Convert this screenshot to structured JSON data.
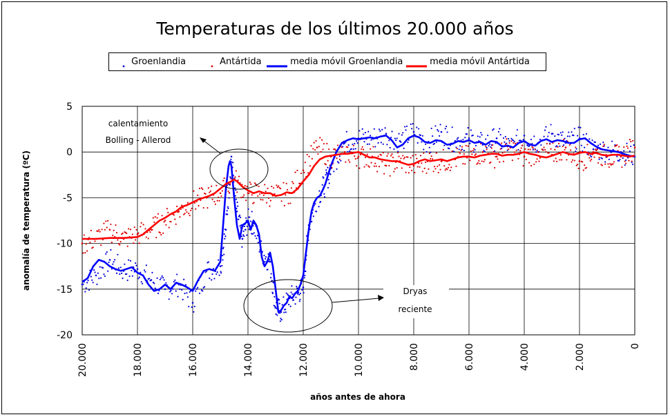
{
  "chart_data": {
    "type": "line",
    "title": "Temperaturas de los últimos 20.000 años",
    "xlabel": "años antes de ahora",
    "ylabel": "anomalía de temperatura (ºC)",
    "xlim": [
      20000,
      0
    ],
    "ylim": [
      -20,
      5
    ],
    "x_ticks": [
      20000,
      18000,
      16000,
      14000,
      12000,
      10000,
      8000,
      6000,
      4000,
      2000,
      0
    ],
    "x_tick_labels": [
      "20.000",
      "18.000",
      "16.000",
      "14.000",
      "12.000",
      "10.000",
      "8.000",
      "6.000",
      "4.000",
      "2.000",
      "0"
    ],
    "y_ticks": [
      5,
      0,
      -5,
      -10,
      -15,
      -20
    ],
    "y_tick_labels": [
      "5",
      "0",
      "-5",
      "-10",
      "-15",
      "-20"
    ],
    "grid": true,
    "legend_position": "top",
    "series": [
      {
        "name": "Groenlandia",
        "style": "scatter",
        "color": "#0000dd",
        "scatter": true,
        "x": [
          20000,
          19500,
          19000,
          18500,
          18000,
          17500,
          17000,
          16500,
          16000,
          15500,
          15000,
          14800,
          14600,
          14400,
          14200,
          14000,
          13800,
          13500,
          13200,
          13000,
          12800,
          12500,
          12200,
          12000,
          11800,
          11500,
          11200,
          11000,
          10500,
          10000,
          9500,
          9000,
          8500,
          8000,
          7500,
          7000,
          6500,
          6000,
          5500,
          5000,
          4500,
          4000,
          3500,
          3000,
          2500,
          2000,
          1500,
          1000,
          500,
          0
        ],
        "y": [
          -14.5,
          -13.5,
          -11.8,
          -13,
          -12.8,
          -14,
          -15,
          -14.5,
          -16.5,
          -13,
          -12.5,
          -8.5,
          -0.5,
          -6.5,
          -9.5,
          -7.5,
          -7.8,
          -11,
          -12,
          -17,
          -17.5,
          -16,
          -15.5,
          -14.8,
          -8,
          -5,
          -3.5,
          -1.8,
          1,
          1.5,
          1.5,
          2,
          1.2,
          2.2,
          1,
          2.2,
          1.2,
          1.5,
          0.8,
          1.5,
          0.5,
          1.8,
          1,
          2,
          1,
          1.5,
          0.3,
          0.2,
          0,
          -0.5
        ]
      },
      {
        "name": "Antártida",
        "style": "scatter",
        "color": "#dd0000",
        "scatter": true,
        "x": [
          20000,
          19500,
          19000,
          18500,
          18000,
          17500,
          17000,
          16500,
          16000,
          15500,
          15000,
          14500,
          14000,
          13500,
          13000,
          12500,
          12000,
          11500,
          11000,
          10500,
          10000,
          9500,
          9000,
          8500,
          8000,
          7500,
          7000,
          6500,
          6000,
          5500,
          5000,
          4500,
          4000,
          3500,
          3000,
          2500,
          2000,
          1500,
          1000,
          500,
          0
        ],
        "y": [
          -10,
          -9.5,
          -8.5,
          -9.5,
          -9,
          -8.5,
          -7.5,
          -6.5,
          -5.5,
          -5,
          -4.5,
          -3,
          -4.5,
          -4.5,
          -4.8,
          -4.5,
          -2,
          0.5,
          -0.5,
          0,
          -0.5,
          -0.5,
          -1.5,
          -1,
          -1.5,
          -1,
          -1,
          -0.8,
          -0.5,
          0,
          -0.5,
          0.5,
          -0.5,
          0,
          -0.3,
          0.5,
          -1,
          0,
          -0.5,
          -0.5,
          0.5
        ]
      },
      {
        "name": "media móvil Groenlandia",
        "style": "line",
        "color": "#0000ff",
        "x": [
          20000,
          19800,
          19600,
          19400,
          19200,
          19000,
          18800,
          18600,
          18400,
          18200,
          18000,
          17800,
          17600,
          17400,
          17200,
          17000,
          16800,
          16600,
          16400,
          16200,
          16000,
          15800,
          15600,
          15400,
          15200,
          15000,
          14900,
          14800,
          14700,
          14650,
          14600,
          14500,
          14400,
          14300,
          14200,
          14100,
          14000,
          13900,
          13800,
          13700,
          13600,
          13500,
          13400,
          13300,
          13200,
          13100,
          13000,
          12900,
          12800,
          12700,
          12600,
          12500,
          12400,
          12300,
          12200,
          12100,
          12000,
          11900,
          11800,
          11700,
          11600,
          11500,
          11400,
          11300,
          11200,
          11100,
          11000,
          10800,
          10600,
          10400,
          10200,
          10000,
          9800,
          9600,
          9400,
          9200,
          9000,
          8800,
          8600,
          8400,
          8200,
          8000,
          7800,
          7600,
          7400,
          7200,
          7000,
          6800,
          6600,
          6400,
          6200,
          6000,
          5800,
          5600,
          5400,
          5200,
          5000,
          4800,
          4600,
          4400,
          4200,
          4000,
          3800,
          3600,
          3400,
          3200,
          3000,
          2800,
          2600,
          2400,
          2200,
          2000,
          1800,
          1600,
          1400,
          1200,
          1000,
          800,
          600,
          400,
          200,
          0
        ],
        "y": [
          -14.2,
          -13.8,
          -12.5,
          -11.8,
          -12,
          -12.5,
          -12.8,
          -13,
          -12.8,
          -12.6,
          -13.2,
          -13.5,
          -14.5,
          -15.2,
          -15,
          -14.5,
          -15,
          -14.3,
          -14.5,
          -14.8,
          -15.2,
          -14,
          -13,
          -12.8,
          -13,
          -12,
          -8,
          -4,
          -1.5,
          -1,
          -1.5,
          -5,
          -8,
          -9.5,
          -8,
          -7.8,
          -7.5,
          -8.5,
          -7.5,
          -8,
          -9,
          -11.5,
          -12.5,
          -12,
          -11,
          -12.5,
          -15,
          -17.5,
          -17.3,
          -16.8,
          -16.5,
          -15.8,
          -16,
          -15.5,
          -15.2,
          -14.5,
          -13.5,
          -11,
          -8.5,
          -6.5,
          -5.5,
          -5,
          -4.8,
          -4.2,
          -3.5,
          -2.5,
          -1.5,
          0,
          1,
          1.3,
          1.5,
          1.4,
          1.5,
          1.6,
          1.5,
          1.7,
          1.8,
          1.3,
          0.5,
          0.8,
          1.5,
          1.8,
          1.6,
          1.1,
          1,
          1.3,
          1.2,
          0.8,
          0.9,
          1.2,
          1.1,
          1.3,
          1,
          1.1,
          0.8,
          1.2,
          1.1,
          0.6,
          0.7,
          0.5,
          1,
          1.2,
          0.8,
          0.7,
          1.2,
          1.4,
          1.1,
          1.3,
          1.2,
          1,
          1,
          1.4,
          1.5,
          1,
          0.6,
          0.3,
          0.2,
          0.1,
          0,
          -0.2,
          -0.4,
          -0.5
        ]
      },
      {
        "name": "media móvil Antártida",
        "style": "line",
        "color": "#ff0000",
        "x": [
          20000,
          19500,
          19000,
          18500,
          18000,
          17800,
          17600,
          17400,
          17200,
          17000,
          16800,
          16600,
          16400,
          16200,
          16000,
          15800,
          15600,
          15400,
          15200,
          15000,
          14800,
          14600,
          14500,
          14400,
          14200,
          14000,
          13800,
          13600,
          13400,
          13200,
          13000,
          12800,
          12600,
          12400,
          12200,
          12000,
          11800,
          11600,
          11400,
          11200,
          11000,
          10800,
          10600,
          10400,
          10200,
          10000,
          9800,
          9600,
          9400,
          9200,
          9000,
          8800,
          8600,
          8400,
          8200,
          8000,
          7800,
          7600,
          7400,
          7200,
          7000,
          6800,
          6600,
          6400,
          6200,
          6000,
          5800,
          5600,
          5400,
          5200,
          5000,
          4800,
          4600,
          4400,
          4200,
          4000,
          3800,
          3600,
          3400,
          3200,
          3000,
          2800,
          2600,
          2400,
          2200,
          2000,
          1800,
          1600,
          1400,
          1200,
          1000,
          800,
          600,
          400,
          200,
          0
        ],
        "y": [
          -9.5,
          -9.5,
          -9.4,
          -9.4,
          -9.3,
          -9,
          -8.5,
          -8,
          -7.5,
          -7.2,
          -6.8,
          -6.5,
          -6,
          -5.8,
          -5.5,
          -5.2,
          -5,
          -4.8,
          -4.5,
          -4,
          -3.5,
          -3.2,
          -3,
          -3.2,
          -3.8,
          -4.2,
          -4.5,
          -4.3,
          -4.5,
          -4.5,
          -4.8,
          -4.7,
          -4.4,
          -4.5,
          -4,
          -3.2,
          -2.5,
          -1.5,
          -0.8,
          -0.5,
          -0.4,
          -0.3,
          -0.2,
          -0.2,
          -0.1,
          0,
          -0.3,
          -0.6,
          -0.6,
          -0.8,
          -0.9,
          -1,
          -1,
          -1.2,
          -1.4,
          -1.3,
          -1,
          -0.8,
          -1,
          -0.9,
          -0.8,
          -1,
          -0.8,
          -0.6,
          -0.5,
          -0.5,
          -0.6,
          -0.4,
          -0.3,
          -0.2,
          -0.2,
          -0.4,
          -0.3,
          -0.3,
          -0.2,
          0,
          -0.2,
          -0.3,
          -0.5,
          -0.6,
          -0.4,
          -0.2,
          0,
          -0.2,
          -0.3,
          -0.1,
          0,
          -0.2,
          -0.1,
          -0.3,
          -0.4,
          -0.3,
          -0.3,
          -0.4,
          -0.5,
          -0.4
        ]
      }
    ],
    "annotations": [
      {
        "lines": [
          "calentamiento",
          "Bolling  -  Allerod"
        ]
      },
      {
        "lines": [
          "Dryas",
          "reciente"
        ]
      }
    ]
  }
}
